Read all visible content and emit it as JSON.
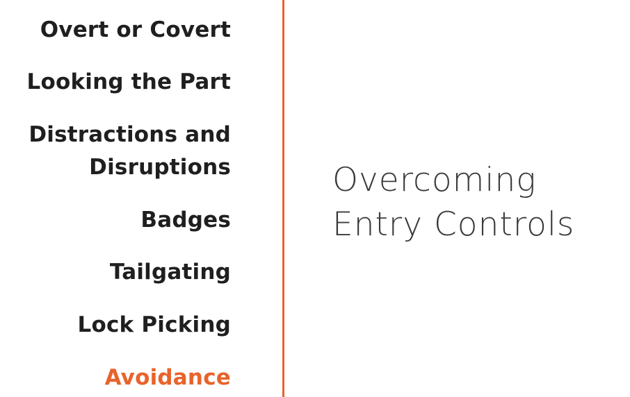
{
  "agenda": {
    "items": [
      {
        "label": "Overt or Covert"
      },
      {
        "label": "Looking the Part"
      },
      {
        "label": "Distractions and"
      },
      {
        "label": "Disruptions"
      },
      {
        "label": "Badges"
      },
      {
        "label": "Tailgating"
      },
      {
        "label": "Lock Picking"
      },
      {
        "label": "Avoidance"
      }
    ],
    "active_color": "#e8632b"
  },
  "section": {
    "title_line1": "Overcoming",
    "title_line2": "Entry Controls"
  },
  "colors": {
    "accent": "#e8632b",
    "text": "#1f1f1f",
    "title": "#3a3a3a",
    "background": "#ffffff"
  }
}
